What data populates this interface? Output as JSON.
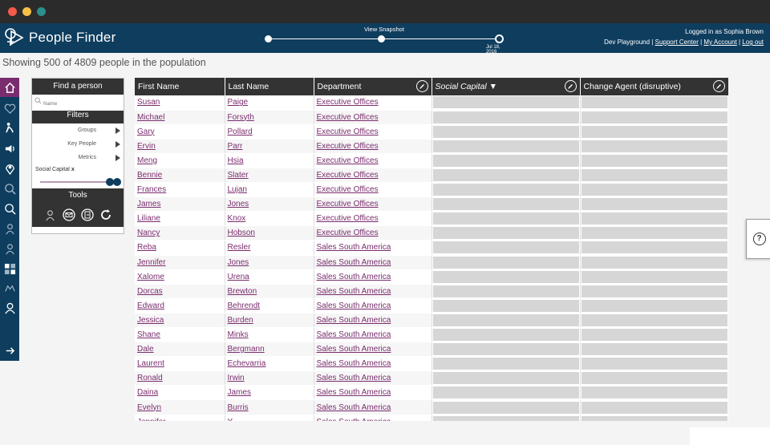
{
  "window": {
    "traffic_lights": [
      "close",
      "minimize",
      "zoom"
    ]
  },
  "header": {
    "app_title": "People Finder",
    "snapshot_label": "View Snapshot",
    "snapshot_date": "Jul 18, 2016",
    "logged_in_text": "Logged in as Sophia Brown",
    "workspace": "Dev Playground",
    "links": [
      "Support Center",
      "My Account",
      "Log out"
    ]
  },
  "summary": "Showing 500 of 4809 people in the population",
  "find_panel": {
    "title": "Find a person",
    "search_placeholder": "Name",
    "filters_title": "Filters",
    "filters": [
      "Groups",
      "Key People",
      "Metrics"
    ],
    "active_filter": "Social Capital",
    "active_filter_remove": "x",
    "tools_title": "Tools"
  },
  "table": {
    "columns": [
      "First Name",
      "Last Name",
      "Department",
      "Social Capital ▼",
      "Change Agent (disruptive)"
    ],
    "rows": [
      [
        "Susan",
        "Paige",
        "Executive Offices"
      ],
      [
        "Michael",
        "Forsyth",
        "Executive Offices"
      ],
      [
        "Gary",
        "Pollard",
        "Executive Offices"
      ],
      [
        "Ervin",
        "Parr",
        "Executive Offices"
      ],
      [
        "Meng",
        "Hsia",
        "Executive Offices"
      ],
      [
        "Bennie",
        "Slater",
        "Executive Offices"
      ],
      [
        "Frances",
        "Lujan",
        "Executive Offices"
      ],
      [
        "James",
        "Jones",
        "Executive Offices"
      ],
      [
        "Liliane",
        "Knox",
        "Executive Offices"
      ],
      [
        "Nancy",
        "Hobson",
        "Executive Offices"
      ],
      [
        "Reba",
        "Resler",
        "Sales South America"
      ],
      [
        "Jennifer",
        "Jones",
        "Sales South America"
      ],
      [
        "Xalome",
        "Urena",
        "Sales South America"
      ],
      [
        "Dorcas",
        "Brewton",
        "Sales South America"
      ],
      [
        "Edward",
        "Behrendt",
        "Sales South America"
      ],
      [
        "Jessica",
        "Burden",
        "Sales South America"
      ],
      [
        "Shane",
        "Minks",
        "Sales South America"
      ],
      [
        "Dale",
        "Bergmann",
        "Sales South America"
      ],
      [
        "Laurent",
        "Echevarria",
        "Sales South America"
      ],
      [
        "Ronald",
        "Irwin",
        "Sales South America"
      ],
      [
        "Daina",
        "James",
        "Sales South America"
      ],
      [
        "Evelyn",
        "Burris",
        "Sales South America"
      ],
      [
        "Jennifer",
        "Y...",
        "Sales South America"
      ]
    ]
  },
  "help": {
    "label": "?"
  },
  "colors": {
    "header": "#0e3d5e",
    "accent": "#7a2d6e",
    "table_head": "#333333",
    "bar": "#d6d6d6"
  }
}
